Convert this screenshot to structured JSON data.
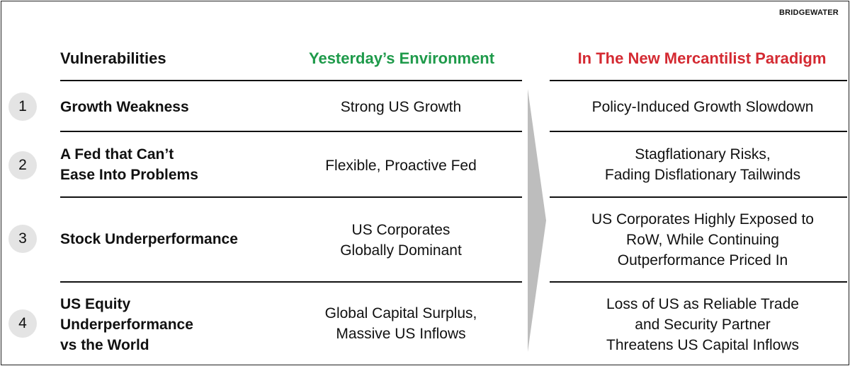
{
  "brand": "BRIDGEWATER",
  "headers": {
    "vulnerabilities": "Vulnerabilities",
    "yesterday": "Yesterday’s Environment",
    "new_paradigm": "In The New Mercantilist Paradigm"
  },
  "colors": {
    "yesterday_accent": "#1e9a4a",
    "new_paradigm_accent": "#d42a32",
    "number_circle": "#e4e4e4",
    "arrow_gray": "#bdbdbd"
  },
  "rows": [
    {
      "number": "1",
      "vulnerability": "Growth Weakness",
      "yesterday": "Strong US Growth",
      "new_paradigm": "Policy-Induced Growth Slowdown"
    },
    {
      "number": "2",
      "vulnerability": "A Fed that Can’t\nEase Into Problems",
      "yesterday": "Flexible, Proactive Fed",
      "new_paradigm": "Stagflationary Risks,\nFading Disflationary Tailwinds"
    },
    {
      "number": "3",
      "vulnerability": "Stock Underperformance",
      "yesterday": "US Corporates\nGlobally Dominant",
      "new_paradigm": "US Corporates Highly Exposed to\nRoW, While Continuing\nOutperformance Priced In"
    },
    {
      "number": "4",
      "vulnerability": "US Equity\nUnderperformance\nvs the World",
      "yesterday": "Global Capital Surplus,\nMassive US Inflows",
      "new_paradigm": "Loss of US as Reliable Trade\nand Security Partner\nThreatens US Capital Inflows"
    }
  ],
  "icons": {
    "arrow": "right-chevron-arrow-icon"
  }
}
